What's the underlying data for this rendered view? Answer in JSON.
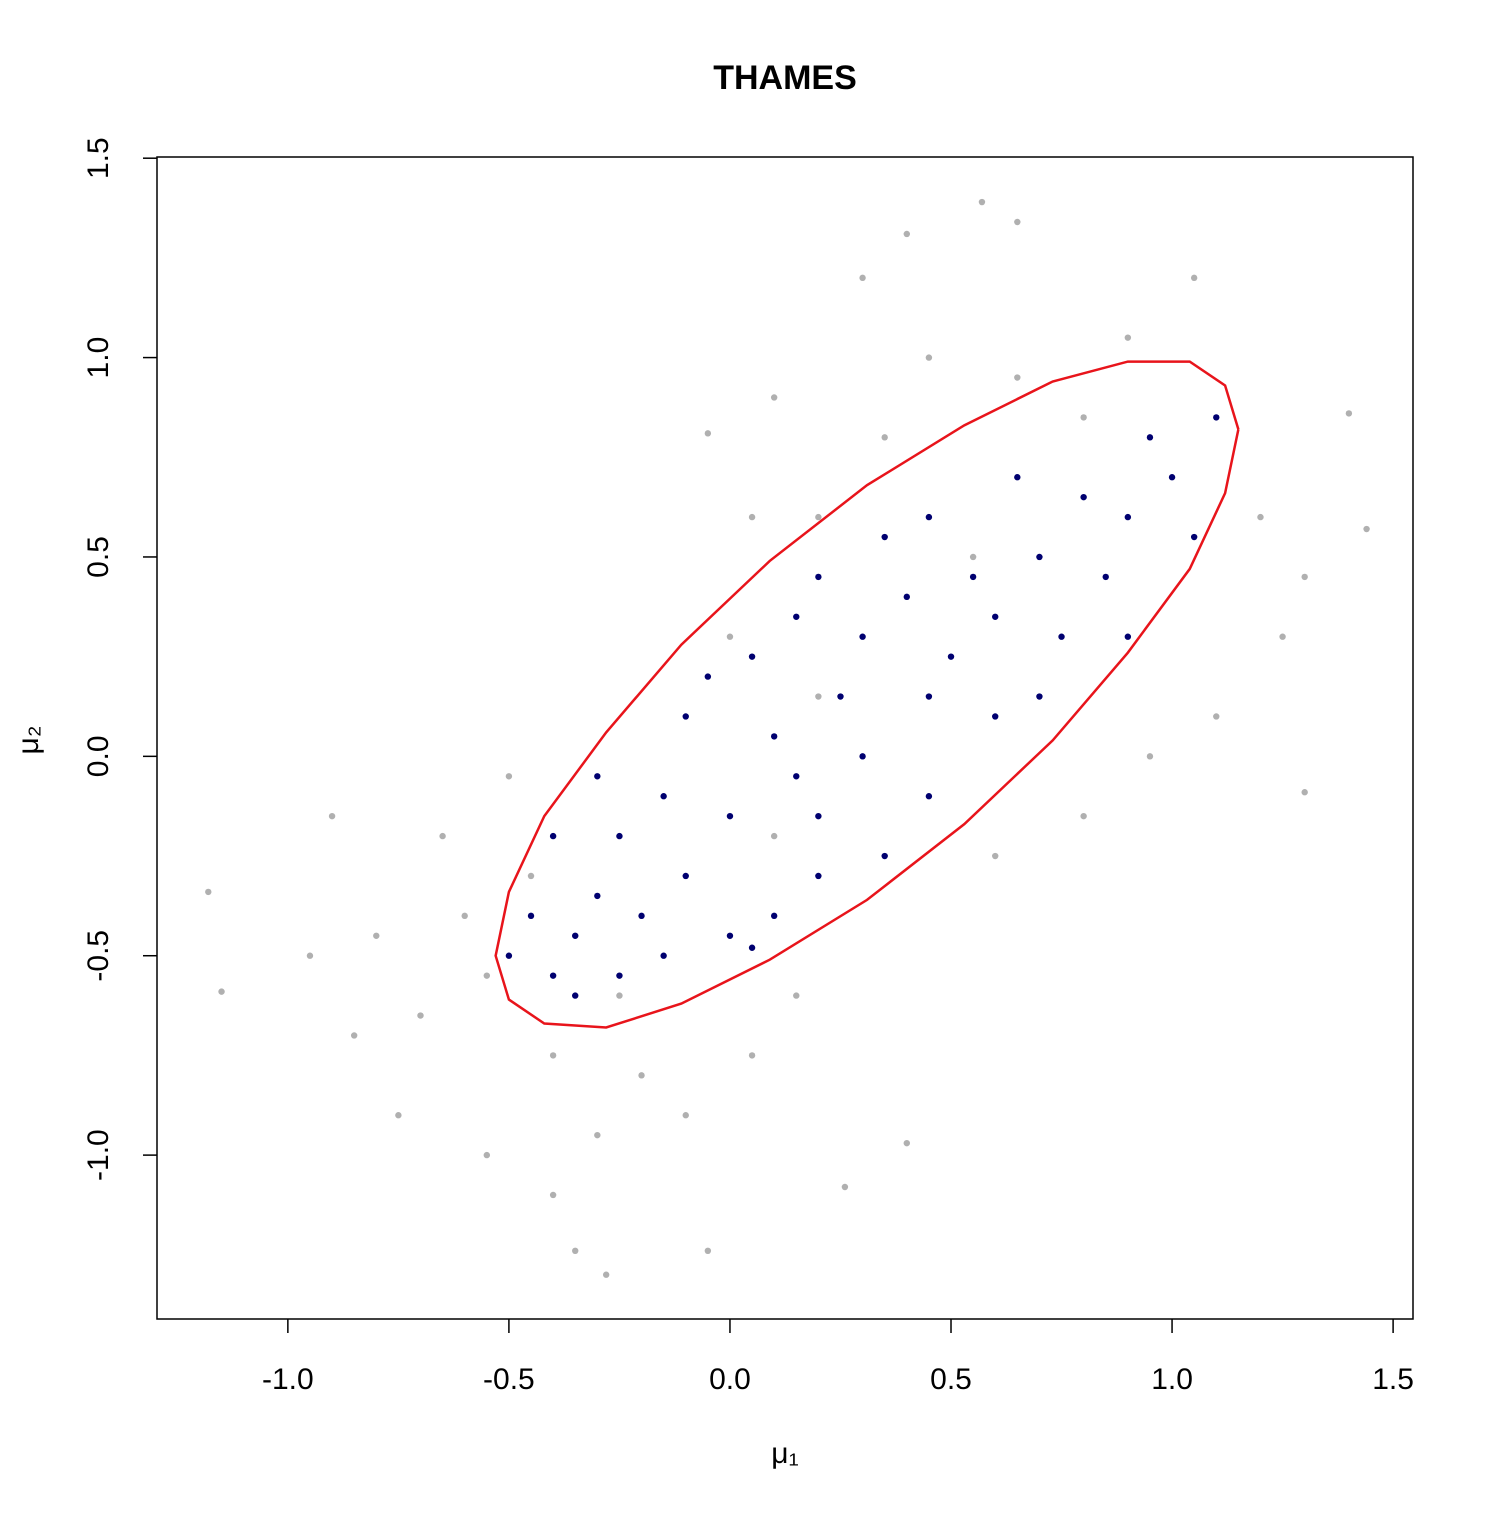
{
  "chart_data": {
    "type": "scatter",
    "title": "THAMES",
    "xlabel": "μ₁",
    "ylabel": "μ₂",
    "xlim": [
      -1.296,
      1.545
    ],
    "ylim": [
      -1.411,
      1.503
    ],
    "xticks": [
      {
        "value": -1,
        "label": "-1.0"
      },
      -0.5,
      {
        "value": 0,
        "label": "0.0"
      },
      0.5,
      {
        "value": 1,
        "label": "1.0"
      },
      1.5
    ],
    "yticks": [
      {
        "value": -1,
        "label": "-1.0"
      },
      -0.5,
      {
        "value": 0,
        "label": "0.0"
      },
      0.5,
      {
        "value": 1,
        "label": "1.0"
      },
      1.5
    ],
    "series": [
      {
        "kind": "points",
        "color": "#b0b0b0",
        "x": [
          -0.35,
          -0.45,
          -0.25,
          -0.55,
          -0.6,
          -0.4,
          -0.2,
          -0.7,
          -0.8,
          -0.65,
          -0.5,
          -0.3,
          -0.1,
          -0.85,
          -0.95,
          -0.75,
          -0.55,
          -0.4,
          0.05,
          0.15,
          -0.9,
          -1.18,
          -1.15,
          -0.28,
          -0.35,
          -0.05,
          0.4,
          0.26,
          0.55,
          0.35,
          0.2,
          0.1,
          0.45,
          0.65,
          0.8,
          0.9,
          1.2,
          1.25,
          1.1,
          0.95,
          0.8,
          0.6,
          1.3,
          1.44,
          1.3,
          1.4,
          0.57,
          0.65,
          0.4,
          0.3,
          0.05,
          -0.05,
          1.05,
          0,
          0.2,
          0.1
        ],
        "y": [
          -0.45,
          -0.3,
          -0.6,
          -0.55,
          -0.4,
          -0.75,
          -0.8,
          -0.65,
          -0.45,
          -0.2,
          -0.05,
          -0.95,
          -0.9,
          -0.7,
          -0.5,
          -0.9,
          -1,
          -1.1,
          -0.75,
          -0.6,
          -0.15,
          -0.34,
          -0.59,
          -1.3,
          -1.24,
          -1.24,
          -0.97,
          -1.08,
          0.5,
          0.8,
          0.6,
          0.9,
          1,
          0.95,
          0.85,
          1.05,
          0.6,
          0.3,
          0.1,
          0,
          -0.15,
          -0.25,
          0.45,
          0.57,
          -0.09,
          0.86,
          1.39,
          1.34,
          1.31,
          1.2,
          0.6,
          0.81,
          1.2,
          0.3,
          0.15,
          -0.2
        ]
      },
      {
        "kind": "points",
        "color": "#000070",
        "x": [
          0.55,
          0.6,
          0.7,
          0.45,
          0.35,
          0.8,
          0.75,
          0.5,
          0.4,
          0.9,
          0.95,
          0.85,
          0.65,
          0.3,
          0.2,
          0.25,
          0.6,
          0.7,
          1,
          1.1,
          1.05,
          0.9,
          0.45,
          0.15,
          0.05,
          -0.05,
          0.1,
          0.3,
          0.45,
          0.2,
          -0.35,
          -0.4,
          -0.3,
          -0.45,
          -0.25,
          -0.2,
          -0.5,
          -0.35,
          -0.15,
          -0.1,
          0,
          0.1,
          -0.25,
          -0.4,
          -0.15,
          0,
          -0.3,
          0.05,
          0.2,
          -0.1,
          0.35,
          0.15
        ],
        "y": [
          0.45,
          0.35,
          0.5,
          0.6,
          0.55,
          0.65,
          0.3,
          0.25,
          0.4,
          0.6,
          0.8,
          0.45,
          0.7,
          0.3,
          0.45,
          0.15,
          0.1,
          0.15,
          0.7,
          0.85,
          0.55,
          0.3,
          0.15,
          0.35,
          0.25,
          0.2,
          0.05,
          0,
          -0.1,
          -0.15,
          -0.45,
          -0.55,
          -0.35,
          -0.4,
          -0.55,
          -0.4,
          -0.5,
          -0.6,
          -0.5,
          -0.3,
          -0.45,
          -0.4,
          -0.2,
          -0.2,
          -0.1,
          -0.15,
          -0.05,
          -0.48,
          -0.3,
          0.1,
          -0.25,
          -0.05
        ]
      },
      {
        "kind": "line",
        "color": "#e8141b",
        "x": [
          1.15,
          1.12,
          1.04,
          0.9,
          0.73,
          0.53,
          0.31,
          0.09,
          -0.11,
          -0.28,
          -0.42,
          -0.5,
          -0.53,
          -0.5,
          -0.42,
          -0.28,
          -0.11,
          0.09,
          0.31,
          0.53,
          0.73,
          0.9,
          1.04,
          1.12,
          1.15
        ],
        "y": [
          0.82,
          0.93,
          0.99,
          0.99,
          0.94,
          0.83,
          0.68,
          0.49,
          0.28,
          0.06,
          -0.15,
          -0.34,
          -0.5,
          -0.61,
          -0.67,
          -0.68,
          -0.62,
          -0.51,
          -0.36,
          -0.17,
          0.04,
          0.26,
          0.47,
          0.66,
          0.82
        ]
      }
    ]
  }
}
